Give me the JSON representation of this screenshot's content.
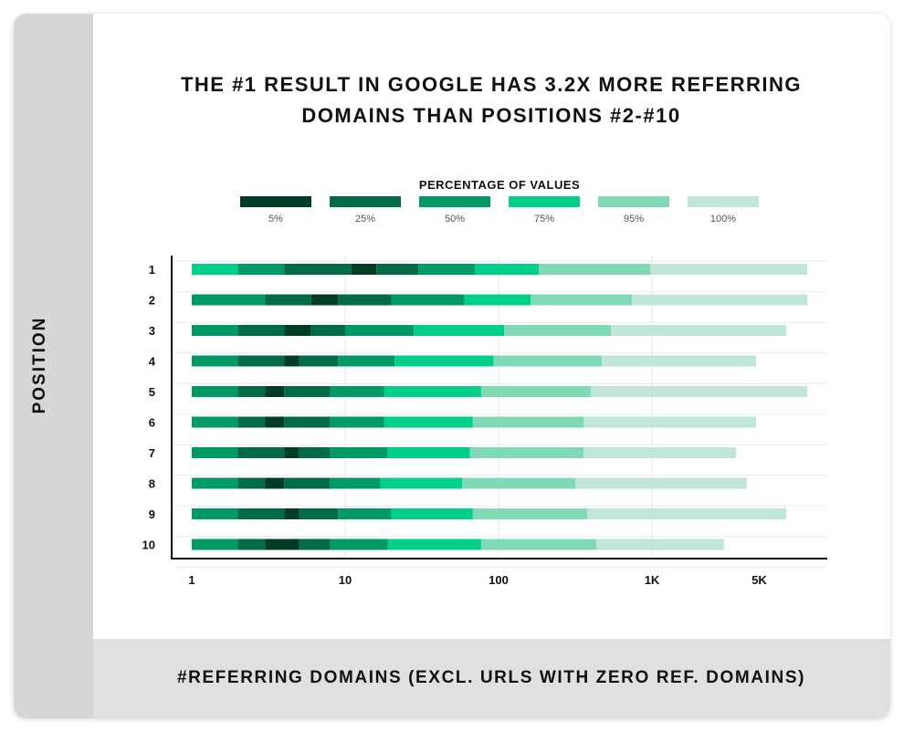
{
  "chart_data": {
    "type": "bar",
    "subtype": "stacked-horizontal-percentile-bands",
    "title": "THE #1 RESULT IN GOOGLE HAS 3.2X MORE REFERRING DOMAINS THAN POSITIONS #2-#10",
    "title_lines": [
      "THE #1 RESULT IN GOOGLE HAS 3.2X MORE REFERRING",
      "DOMAINS THAN POSITIONS #2-#10"
    ],
    "xlabel": "#REFERRING DOMAINS (EXCL. URLS WITH ZERO REF. DOMAINS)",
    "ylabel": "POSITION",
    "xscale": "log",
    "xlim": [
      1,
      10000
    ],
    "xticks": [
      {
        "value": 1,
        "label": "1"
      },
      {
        "value": 10,
        "label": "10"
      },
      {
        "value": 100,
        "label": "100"
      },
      {
        "value": 1000,
        "label": "1K"
      },
      {
        "value": 5000,
        "label": "5K"
      }
    ],
    "legend": {
      "title": "PERCENTAGE OF VALUES",
      "placement": "top",
      "entries": [
        {
          "label": "5%",
          "color": "#003d24"
        },
        {
          "label": "25%",
          "color": "#006b45"
        },
        {
          "label": "50%",
          "color": "#009a66"
        },
        {
          "label": "75%",
          "color": "#00d08a"
        },
        {
          "label": "95%",
          "color": "#7fd9b5"
        },
        {
          "label": "100%",
          "color": "#bfe6d6"
        }
      ]
    },
    "rows": [
      {
        "label": "1",
        "bounds": [
          1,
          2,
          4,
          11,
          16,
          30,
          70,
          183,
          973,
          10300
        ],
        "levels": [
          3,
          2,
          1,
          0,
          1,
          2,
          3,
          4,
          5
        ]
      },
      {
        "label": "2",
        "bounds": [
          1,
          3,
          6,
          9,
          20,
          60,
          162,
          740,
          10300
        ],
        "levels": [
          2,
          1,
          0,
          1,
          2,
          3,
          4,
          5
        ]
      },
      {
        "label": "3",
        "bounds": [
          1,
          2,
          4,
          6,
          10,
          28,
          109,
          540,
          7500
        ],
        "levels": [
          2,
          1,
          0,
          1,
          2,
          3,
          4,
          5
        ]
      },
      {
        "label": "4",
        "bounds": [
          1,
          2,
          4,
          5,
          9,
          21,
          93,
          471,
          4770
        ],
        "levels": [
          2,
          1,
          0,
          1,
          2,
          3,
          4,
          5
        ]
      },
      {
        "label": "5",
        "bounds": [
          1,
          2,
          3,
          4,
          8,
          18,
          77,
          399,
          10300
        ],
        "levels": [
          2,
          1,
          0,
          1,
          2,
          3,
          4,
          5
        ]
      },
      {
        "label": "6",
        "bounds": [
          1,
          2,
          3,
          4,
          8,
          18,
          68,
          358,
          4770
        ],
        "levels": [
          2,
          1,
          0,
          1,
          2,
          3,
          4,
          5
        ]
      },
      {
        "label": "7",
        "bounds": [
          1,
          2,
          4,
          5,
          8,
          19,
          65,
          358,
          3530
        ],
        "levels": [
          2,
          1,
          0,
          1,
          2,
          3,
          4,
          5
        ]
      },
      {
        "label": "8",
        "bounds": [
          1,
          2,
          3,
          4,
          8,
          17,
          58,
          316,
          4160
        ],
        "levels": [
          2,
          1,
          0,
          1,
          2,
          3,
          4,
          5
        ]
      },
      {
        "label": "9",
        "bounds": [
          1,
          2,
          4,
          5,
          9,
          20,
          68,
          378,
          7500
        ],
        "levels": [
          2,
          1,
          0,
          1,
          2,
          3,
          4,
          5
        ]
      },
      {
        "label": "10",
        "bounds": [
          1,
          2,
          3,
          5,
          8,
          19,
          77,
          433,
          2950
        ],
        "levels": [
          2,
          1,
          0,
          1,
          2,
          3,
          4,
          5
        ]
      }
    ],
    "grid": true
  }
}
